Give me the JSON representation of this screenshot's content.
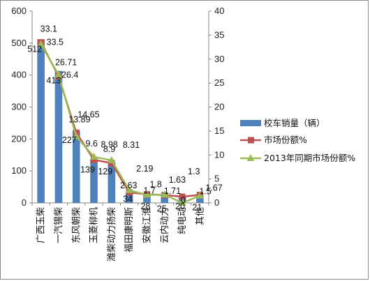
{
  "chart_data": {
    "type": "bar",
    "categories": [
      "广西玉柴",
      "一汽锡柴",
      "东风朝柴",
      "玉菱柳机",
      "潍柴动力扬柴",
      "福田康明斯",
      "安徽江淮",
      "云内动力",
      "纯电动",
      "其他"
    ],
    "bar_series": {
      "name": "校车销量（辆）",
      "values": [
        512,
        413,
        227,
        139,
        129,
        34,
        28,
        25,
        20,
        21
      ],
      "color": "#4f81bd"
    },
    "line_series": [
      {
        "name": "市场份额%",
        "values": [
          33.5,
          26.4,
          14.65,
          8.98,
          8.31,
          2.19,
          1.8,
          1.63,
          1.3,
          1.67
        ],
        "color": "#c0504d"
      },
      {
        "name": "2013年同期市场份额%",
        "values": [
          33.1,
          26.71,
          13.89,
          9.6,
          8.9,
          2.63,
          1.7,
          1.71,
          0,
          1.5
        ],
        "color": "#9bbb59"
      }
    ],
    "yleft": {
      "min": 0,
      "max": 600,
      "step": 100
    },
    "yright": {
      "min": 0,
      "max": 40,
      "step": 5
    },
    "legend_position": "right",
    "grid": false,
    "bar_labels": [
      "512",
      "413",
      "227",
      "139",
      "129",
      "34",
      "28",
      "25",
      "20",
      "21"
    ],
    "share_labels": [
      "33.5",
      "26.4",
      "14.65",
      "8.98",
      "8.31",
      "2.19",
      "1.8",
      "1.63",
      "1.3",
      "1.67"
    ],
    "prev_labels": [
      "33.1",
      "26.71",
      "13.89",
      "9.6",
      "8.9",
      "2.63",
      "1.7",
      "1.71",
      "0",
      "1.5"
    ]
  }
}
